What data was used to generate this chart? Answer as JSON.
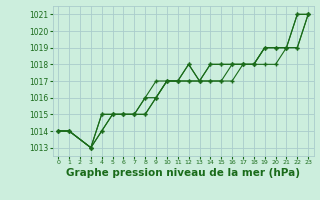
{
  "background_color": "#cceedd",
  "grid_color": "#aacccc",
  "line_color": "#1a6b1a",
  "marker_color": "#1a6b1a",
  "xlabel": "Graphe pression niveau de la mer (hPa)",
  "xlabel_fontsize": 7.5,
  "ylim": [
    1012.5,
    1021.5
  ],
  "xlim": [
    -0.5,
    23.5
  ],
  "yticks": [
    1013,
    1014,
    1015,
    1016,
    1017,
    1018,
    1019,
    1020,
    1021
  ],
  "xticks": [
    0,
    1,
    2,
    3,
    4,
    5,
    6,
    7,
    8,
    9,
    10,
    11,
    12,
    13,
    14,
    15,
    16,
    17,
    18,
    19,
    20,
    21,
    22,
    23
  ],
  "series": [
    [
      1014.0,
      1014.0,
      null,
      1013.0,
      1014.0,
      1015.0,
      1015.0,
      1015.0,
      1015.0,
      1016.0,
      1017.0,
      1017.0,
      1018.0,
      1017.0,
      1017.0,
      1017.0,
      1018.0,
      1018.0,
      1018.0,
      1019.0,
      1019.0,
      1019.0,
      1021.0,
      1021.0
    ],
    [
      1014.0,
      1014.0,
      null,
      1013.0,
      1015.0,
      1015.0,
      1015.0,
      1015.0,
      1015.0,
      1016.0,
      1017.0,
      1017.0,
      1017.0,
      1017.0,
      1017.0,
      1017.0,
      1017.0,
      1018.0,
      1018.0,
      1018.0,
      1018.0,
      1019.0,
      1019.0,
      1021.0
    ],
    [
      1014.0,
      1014.0,
      null,
      1013.0,
      1014.0,
      1015.0,
      1015.0,
      1015.0,
      1016.0,
      1016.0,
      1017.0,
      1017.0,
      1017.0,
      1017.0,
      1018.0,
      1018.0,
      1018.0,
      1018.0,
      1018.0,
      1019.0,
      1019.0,
      1019.0,
      1019.0,
      1021.0
    ],
    [
      1014.0,
      1014.0,
      null,
      1013.0,
      1015.0,
      1015.0,
      1015.0,
      1015.0,
      1016.0,
      1017.0,
      1017.0,
      1017.0,
      1018.0,
      1017.0,
      1018.0,
      1018.0,
      1018.0,
      1018.0,
      1018.0,
      1019.0,
      1019.0,
      1019.0,
      1021.0,
      1021.0
    ]
  ]
}
